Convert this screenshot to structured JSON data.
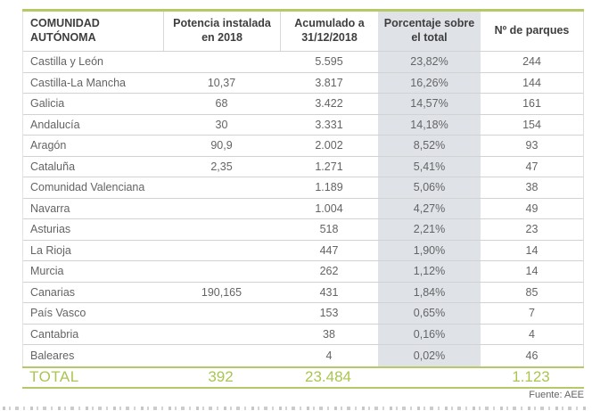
{
  "chart_data": {
    "type": "table",
    "columns": [
      "COMUNIDAD AUTÓNOMA",
      "Potencia instalada en 2018",
      "Acumulado a 31/12/2018",
      "Porcentaje sobre el total",
      "Nº de parques"
    ],
    "rows": [
      [
        "Castilla y León",
        "",
        "5.595",
        "23,82%",
        "244"
      ],
      [
        "Castilla-La Mancha",
        "10,37",
        "3.817",
        "16,26%",
        "144"
      ],
      [
        "Galicia",
        "68",
        "3.422",
        "14,57%",
        "161"
      ],
      [
        "Andalucía",
        "30",
        "3.331",
        "14,18%",
        "154"
      ],
      [
        "Aragón",
        "90,9",
        "2.002",
        "8,52%",
        "93"
      ],
      [
        "Cataluña",
        "2,35",
        "1.271",
        "5,41%",
        "47"
      ],
      [
        "Comunidad Valenciana",
        "",
        "1.189",
        "5,06%",
        "38"
      ],
      [
        "Navarra",
        "",
        "1.004",
        "4,27%",
        "49"
      ],
      [
        "Asturias",
        "",
        "518",
        "2,21%",
        "23"
      ],
      [
        "La Rioja",
        "",
        "447",
        "1,90%",
        "14"
      ],
      [
        "Murcia",
        "",
        "262",
        "1,12%",
        "14"
      ],
      [
        "Canarias",
        "190,165",
        "431",
        "1,84%",
        "85"
      ],
      [
        "País Vasco",
        "",
        "153",
        "0,65%",
        "7"
      ],
      [
        "Cantabria",
        "",
        "38",
        "0,16%",
        "4"
      ],
      [
        "Baleares",
        "",
        "4",
        "0,02%",
        "46"
      ]
    ],
    "total_row": [
      "TOTAL",
      "392",
      "23.484",
      "",
      "1.123"
    ],
    "highlighted_column": "Porcentaje sobre el total",
    "source": "Fuente: AEE"
  },
  "colors": {
    "accent_green": "#abc551",
    "line_green": "#b5c966",
    "highlight_column_bg": "#dfe3e8",
    "row_separator": "#d2d2d2"
  }
}
